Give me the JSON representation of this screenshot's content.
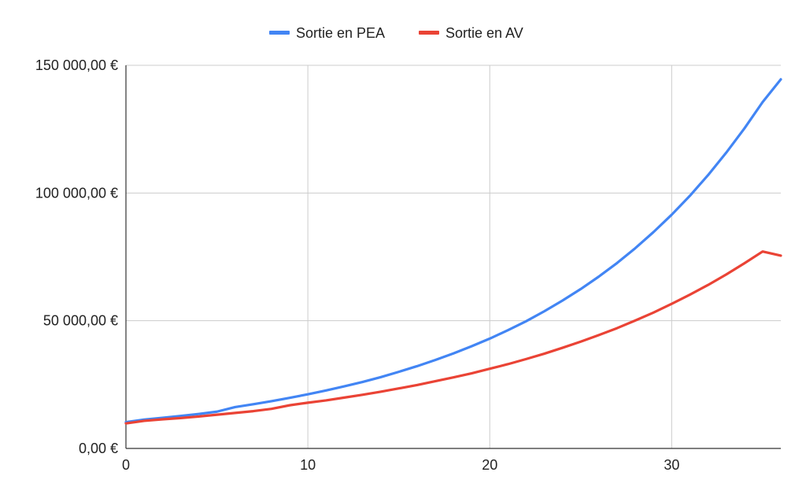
{
  "chart_data": {
    "type": "line",
    "title": "",
    "xlabel": "",
    "ylabel": "",
    "xlim": [
      0,
      36
    ],
    "ylim": [
      0,
      150000
    ],
    "x_ticks": [
      0,
      10,
      20,
      30
    ],
    "x_tick_labels": [
      "0",
      "10",
      "20",
      "30"
    ],
    "y_ticks": [
      0,
      50000,
      100000,
      150000
    ],
    "y_tick_labels": [
      "0,00 €",
      "50 000,00 €",
      "100 000,00 €",
      "150 000,00 €"
    ],
    "grid": true,
    "legend_position": "top",
    "x": [
      0,
      1,
      2,
      3,
      4,
      5,
      6,
      7,
      8,
      9,
      10,
      11,
      12,
      13,
      14,
      15,
      16,
      17,
      18,
      19,
      20,
      21,
      22,
      23,
      24,
      25,
      26,
      27,
      28,
      29,
      30,
      31,
      32,
      33,
      34,
      35,
      36
    ],
    "series": [
      {
        "name": "Sortie en PEA",
        "color": "#4285f4",
        "values": [
          10300,
          11300,
          12000,
          12700,
          13500,
          14400,
          16200,
          17300,
          18500,
          19800,
          21200,
          22700,
          24300,
          26000,
          27900,
          30000,
          32200,
          34600,
          37200,
          40000,
          43000,
          46300,
          49800,
          53700,
          57900,
          62400,
          67300,
          72600,
          78400,
          84700,
          91500,
          98900,
          107000,
          115800,
          125300,
          135600,
          144500
        ]
      },
      {
        "name": "Sortie en AV",
        "color": "#ea4335",
        "values": [
          9800,
          10800,
          11400,
          11900,
          12500,
          13200,
          13900,
          14600,
          15500,
          16900,
          17900,
          18800,
          19900,
          21000,
          22200,
          23500,
          24800,
          26300,
          27800,
          29400,
          31200,
          33000,
          35000,
          37100,
          39400,
          41800,
          44400,
          47100,
          50100,
          53200,
          56600,
          60200,
          64000,
          68100,
          72500,
          77100,
          75500
        ]
      }
    ]
  }
}
